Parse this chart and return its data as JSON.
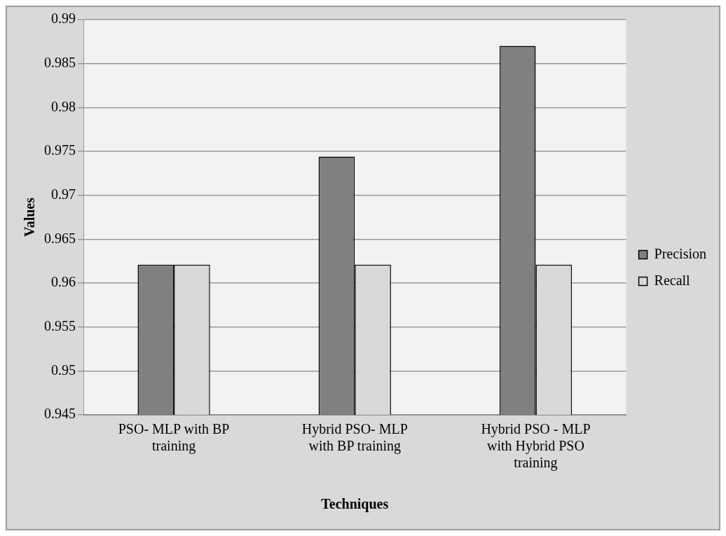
{
  "chart_data": {
    "type": "bar",
    "xlabel": "Techniques",
    "ylabel": "Values",
    "categories": [
      "PSO- MLP with BP training",
      "Hybrid PSO- MLP with BP training",
      "Hybrid PSO - MLP with Hybrid PSO training"
    ],
    "series": [
      {
        "name": "Precision",
        "color": "#808080",
        "values": [
          0.9621,
          0.9744,
          0.987
        ]
      },
      {
        "name": "Recall",
        "color": "#d9d9d9",
        "values": [
          0.9621,
          0.9621,
          0.9621
        ]
      }
    ],
    "ylim": [
      0.945,
      0.99
    ],
    "yticks": [
      0.945,
      0.95,
      0.955,
      0.96,
      0.965,
      0.97,
      0.975,
      0.98,
      0.985,
      0.99
    ],
    "grid": "y",
    "legend": "right"
  }
}
